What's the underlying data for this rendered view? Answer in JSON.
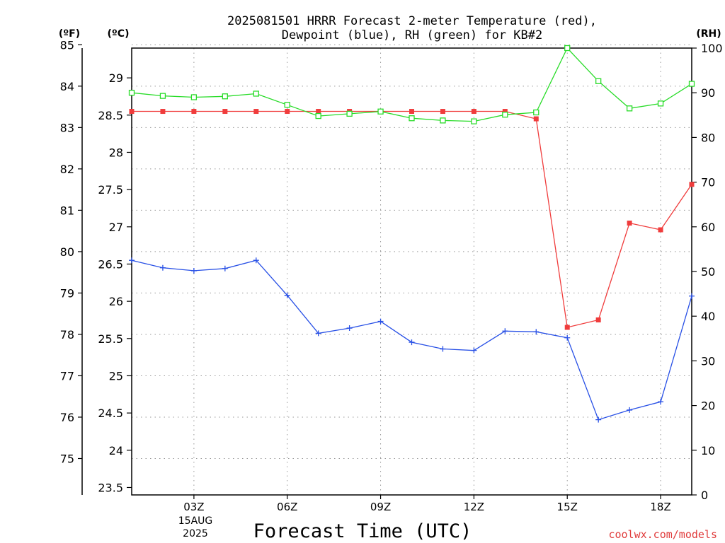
{
  "chart_data": {
    "type": "line",
    "title_line1": "2025081501 HRRR Forecast 2-meter Temperature (red),",
    "title_line2": "Dewpoint (blue), RH (green) for KB#2",
    "axis_unit_f": "(ºF)",
    "axis_unit_c": "(ºC)",
    "axis_unit_rh": "(RH)",
    "xlabel": "Forecast Time (UTC)",
    "date_label_day": "15AUG",
    "date_label_year": "2025",
    "watermark": "coolwx.com/models",
    "x_range_hours": [
      1,
      19
    ],
    "celsius_range": [
      23.4,
      29.4
    ],
    "fahrenheit_ticks": [
      75,
      76,
      77,
      78,
      79,
      80,
      81,
      82,
      83,
      84,
      85
    ],
    "celsius_ticks": [
      23.5,
      24,
      24.5,
      25,
      25.5,
      26,
      26.5,
      27,
      27.5,
      28,
      28.5,
      29
    ],
    "rh_range": [
      0,
      100
    ],
    "rh_ticks": [
      0,
      10,
      20,
      30,
      40,
      50,
      60,
      70,
      80,
      90,
      100
    ],
    "x_ticks": [
      {
        "hour": 3,
        "label": "03Z"
      },
      {
        "hour": 6,
        "label": "06Z"
      },
      {
        "hour": 9,
        "label": "09Z"
      },
      {
        "hour": 12,
        "label": "12Z"
      },
      {
        "hour": 15,
        "label": "15Z"
      },
      {
        "hour": 18,
        "label": "18Z"
      }
    ],
    "grid": true,
    "series": [
      {
        "name": "Temperature",
        "units": "°C",
        "color": "#f03c3c",
        "marker": "filled-square",
        "x": [
          1,
          2,
          3,
          4,
          5,
          6,
          7,
          8,
          9,
          10,
          11,
          12,
          13,
          14,
          15,
          16,
          17,
          18,
          19
        ],
        "values": [
          28.55,
          28.55,
          28.55,
          28.55,
          28.55,
          28.55,
          28.55,
          28.55,
          28.55,
          28.55,
          28.55,
          28.55,
          28.55,
          28.45,
          25.65,
          25.75,
          27.05,
          26.96,
          27.57
        ]
      },
      {
        "name": "Dewpoint",
        "units": "°C",
        "color": "#2850e6",
        "marker": "plus",
        "x": [
          1,
          2,
          3,
          4,
          5,
          6,
          7,
          8,
          9,
          10,
          11,
          12,
          13,
          14,
          15,
          16,
          17,
          18,
          19
        ],
        "values": [
          26.55,
          26.45,
          26.41,
          26.44,
          26.55,
          26.08,
          25.57,
          25.64,
          25.73,
          25.45,
          25.36,
          25.34,
          25.6,
          25.59,
          25.51,
          24.41,
          24.54,
          24.65,
          26.07
        ]
      },
      {
        "name": "RH",
        "units": "%",
        "color": "#28dc28",
        "marker": "open-square",
        "x": [
          1,
          2,
          3,
          4,
          5,
          6,
          7,
          8,
          9,
          10,
          11,
          12,
          13,
          14,
          15,
          16,
          17,
          18,
          19
        ],
        "values": [
          90,
          89.3,
          89,
          89.2,
          89.8,
          87.3,
          84.8,
          85.3,
          85.8,
          84.3,
          83.8,
          83.6,
          85.1,
          85.6,
          100,
          92.6,
          86.5,
          87.6,
          92
        ]
      }
    ]
  }
}
